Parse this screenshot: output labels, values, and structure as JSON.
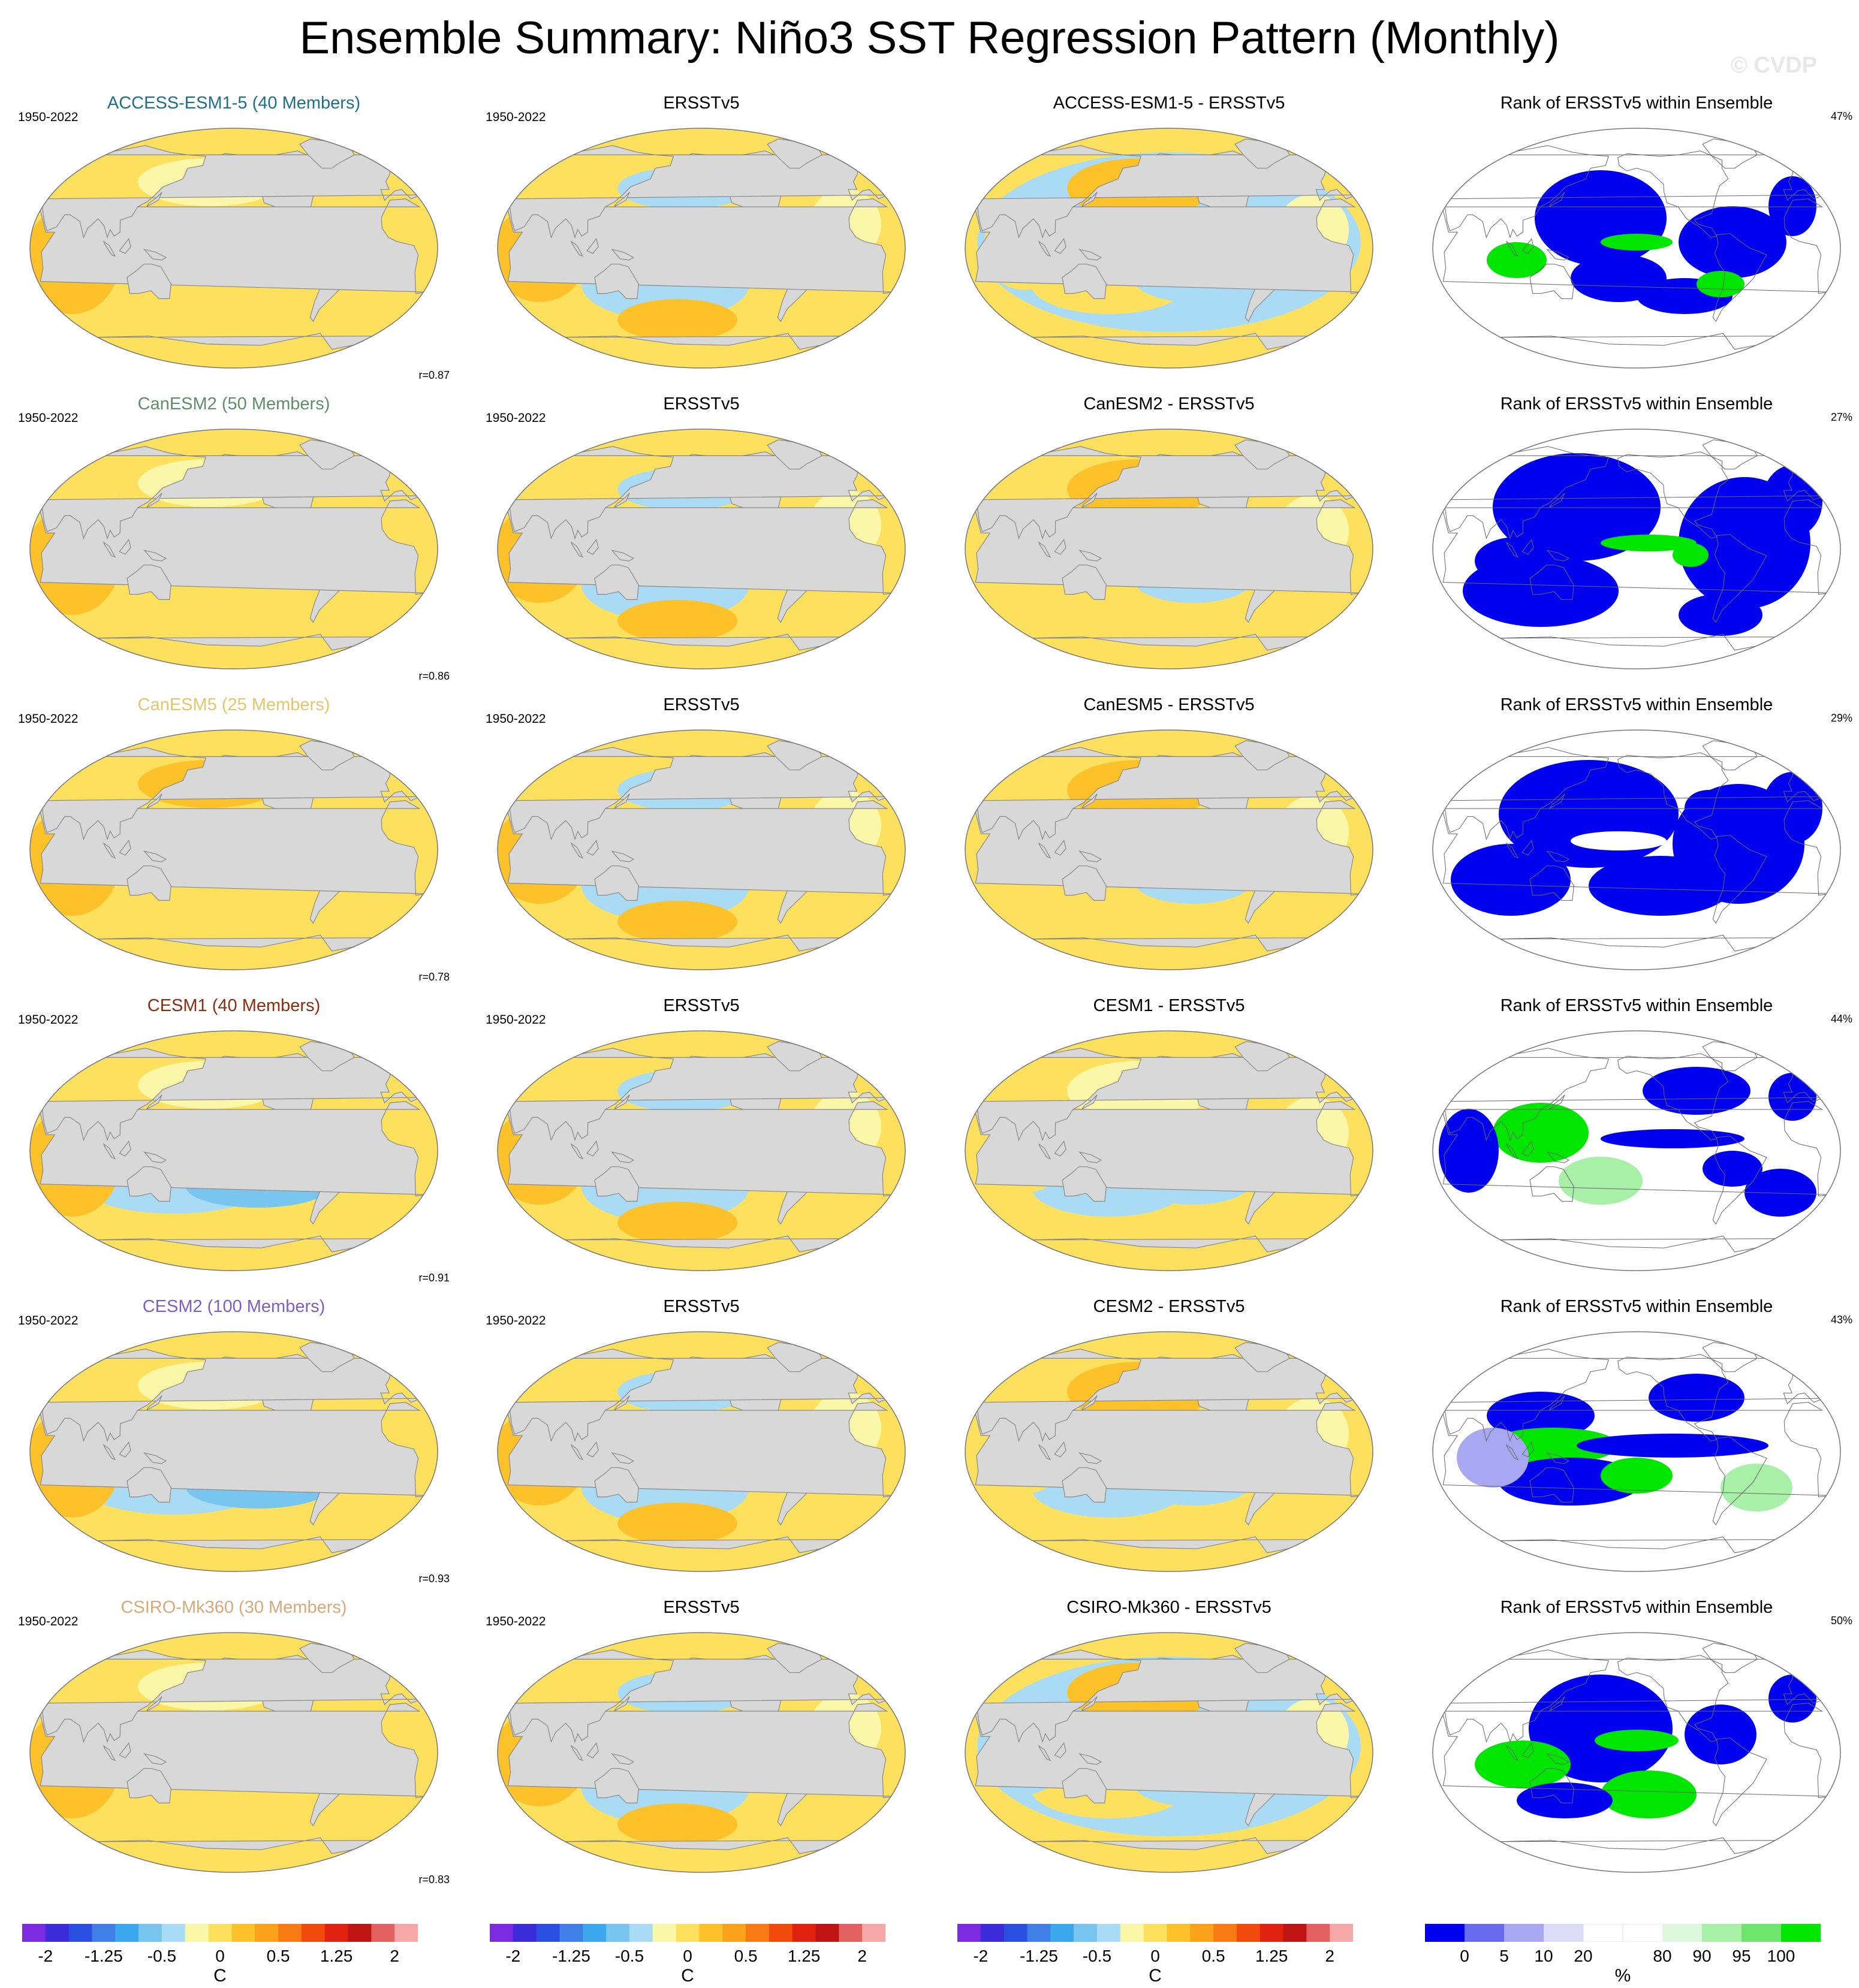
{
  "header": {
    "title": "Ensemble Summary: Niño3 SST Regression Pattern (Monthly)",
    "watermark": "© CVDP"
  },
  "rows": [
    {
      "model_title": "ACCESS-ESM1-5 (40 Members)",
      "model_color": "#1f6f8b",
      "years_model": "1950-2022",
      "corr": "r=0.87",
      "obs_title": "ERSSTv5",
      "years_obs": "1950-2022",
      "diff_title": "ACCESS-ESM1-5 - ERSSTv5",
      "rank_title": "Rank of ERSSTv5 within Ensemble",
      "rank_pct": "47%"
    },
    {
      "model_title": "CanESM2 (50 Members)",
      "model_color": "#5f8f6a",
      "years_model": "1950-2022",
      "corr": "r=0.86",
      "obs_title": "ERSSTv5",
      "years_obs": "1950-2022",
      "diff_title": "CanESM2 - ERSSTv5",
      "rank_title": "Rank of ERSSTv5 within Ensemble",
      "rank_pct": "27%"
    },
    {
      "model_title": "CanESM5 (25 Members)",
      "model_color": "#e3c76a",
      "years_model": "1950-2022",
      "corr": "r=0.78",
      "obs_title": "ERSSTv5",
      "years_obs": "1950-2022",
      "diff_title": "CanESM5 - ERSSTv5",
      "rank_title": "Rank of ERSSTv5 within Ensemble",
      "rank_pct": "29%"
    },
    {
      "model_title": "CESM1 (40 Members)",
      "model_color": "#8b2e12",
      "years_model": "1950-2022",
      "corr": "r=0.91",
      "obs_title": "ERSSTv5",
      "years_obs": "1950-2022",
      "diff_title": "CESM1 - ERSSTv5",
      "rank_title": "Rank of ERSSTv5 within Ensemble",
      "rank_pct": "44%"
    },
    {
      "model_title": "CESM2 (100 Members)",
      "model_color": "#7b5fc7",
      "years_model": "1950-2022",
      "corr": "r=0.93",
      "obs_title": "ERSSTv5",
      "years_obs": "1950-2022",
      "diff_title": "CESM2 - ERSSTv5",
      "rank_title": "Rank of ERSSTv5 within Ensemble",
      "rank_pct": "43%"
    },
    {
      "model_title": "CSIRO-Mk360 (30 Members)",
      "model_color": "#d9a97a",
      "years_model": "1950-2022",
      "corr": "r=0.83",
      "obs_title": "ERSSTv5",
      "years_obs": "1950-2022",
      "diff_title": "CSIRO-Mk360 - ERSSTv5",
      "rank_title": "Rank of ERSSTv5 within Ensemble",
      "rank_pct": "50%"
    }
  ],
  "colorbars": {
    "sst": {
      "colors": [
        "#7d2be0",
        "#3b2bd8",
        "#2a4fe0",
        "#3f7fe6",
        "#3ba8ee",
        "#78c6f0",
        "#a9dcf4",
        "#fbf7a8",
        "#fde15e",
        "#fdc12a",
        "#fba11a",
        "#f87a12",
        "#f24a0c",
        "#e0210e",
        "#bf1414",
        "#e26060",
        "#f6a8a8"
      ],
      "ticks": [
        "-2",
        "-1.25",
        "-0.5",
        "0",
        "0.5",
        "1.25",
        "2"
      ],
      "unit": "C"
    },
    "rank": {
      "colors": [
        "#0000ee",
        "#6a6aee",
        "#a8a8f2",
        "#dcdcf8",
        "#ffffff",
        "#ffffff",
        "#ddf7dd",
        "#a8f0a8",
        "#6ee66e",
        "#00e600"
      ],
      "ticks": [
        "0",
        "5",
        "10",
        "20",
        "80",
        "90",
        "95",
        "100"
      ],
      "unit": "%"
    }
  }
}
